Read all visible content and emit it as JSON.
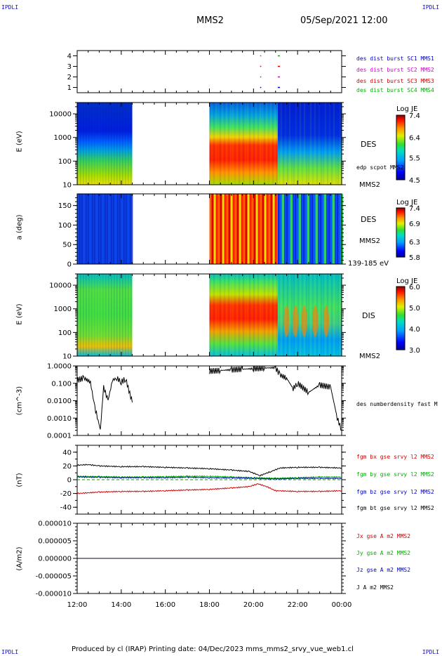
{
  "header": {
    "corner_tl": "IPDLI",
    "corner_tr": "IPDLI",
    "corner_bl": "IPDLI",
    "corner_br": "IPDLI",
    "spacecraft": "MMS2",
    "datetime": "05/Sep/2021 12:00"
  },
  "footer": {
    "text": "Produced by cl (IRAP)   Printing date: 04/Dec/2023   mms_mms2_srvy_vue_web1.cl"
  },
  "colors": {
    "blue": "#0000c8",
    "magenta": "#d000d0",
    "red": "#d00000",
    "green": "#00b000",
    "black": "#000000"
  },
  "chart_data": [
    {
      "type": "scatter",
      "panel": "spacecraft_availability",
      "ylabel": "",
      "yticks": [
        "1",
        "2",
        "3",
        "4"
      ],
      "ylim": [
        0.5,
        4.5
      ],
      "legend": [
        {
          "name": "des dist burst SC1 MMS1",
          "color": "#0000c8"
        },
        {
          "name": "des dist burst SC2 MMS2",
          "color": "#d000d0"
        },
        {
          "name": "des dist burst SC3 MMS3",
          "color": "#d00000"
        },
        {
          "name": "des dist burst SC4 MMS4",
          "color": "#00b000"
        }
      ],
      "marks": [
        {
          "sc": 1,
          "start_h": 20.3,
          "end_h": 20.35
        },
        {
          "sc": 2,
          "start_h": 20.3,
          "end_h": 20.35
        },
        {
          "sc": 3,
          "start_h": 20.3,
          "end_h": 20.35
        },
        {
          "sc": 4,
          "start_h": 20.3,
          "end_h": 20.35
        },
        {
          "sc": 1,
          "start_h": 21.1,
          "end_h": 21.2
        },
        {
          "sc": 2,
          "start_h": 21.1,
          "end_h": 21.2
        },
        {
          "sc": 3,
          "start_h": 21.1,
          "end_h": 21.2
        },
        {
          "sc": 4,
          "start_h": 21.1,
          "end_h": 21.2
        }
      ]
    },
    {
      "type": "heatmap",
      "panel": "des_energy",
      "ylabel": "E (eV)",
      "yscale": "log",
      "ylim": [
        10,
        30000
      ],
      "yticks": [
        "10",
        "100",
        "1000",
        "10000"
      ],
      "label": "DES",
      "secondary_label": "edp scpot MMS2",
      "sc_label": "MMS2",
      "colorbar": {
        "title": "Log JE",
        "ticks": [
          "4.5",
          "5.5",
          "6.4",
          "7.4"
        ],
        "range": [
          4.5,
          7.4
        ]
      },
      "data_gap_h": [
        14.5,
        18.0
      ]
    },
    {
      "type": "heatmap",
      "panel": "des_pitch",
      "ylabel": "a (deg)",
      "ylim": [
        0,
        180
      ],
      "yticks": [
        "0",
        "50",
        "100",
        "150"
      ],
      "label": "DES",
      "sc_label": "MMS2",
      "energy_range": "139-185 eV",
      "colorbar": {
        "title": "Log JE",
        "ticks": [
          "5.8",
          "6.3",
          "6.9",
          "7.4"
        ],
        "range": [
          5.8,
          7.4
        ]
      },
      "data_gap_h": [
        14.5,
        18.0
      ]
    },
    {
      "type": "heatmap",
      "panel": "dis_energy",
      "ylabel": "E (eV)",
      "yscale": "log",
      "ylim": [
        10,
        30000
      ],
      "yticks": [
        "10",
        "100",
        "1000",
        "10000"
      ],
      "label": "DIS",
      "sc_label": "MMS2",
      "colorbar": {
        "title": "Log JE",
        "ticks": [
          "3.0",
          "4.0",
          "5.0",
          "6.0"
        ],
        "range": [
          3.0,
          6.0
        ]
      },
      "data_gap_h": [
        14.5,
        18.0
      ]
    },
    {
      "type": "line",
      "panel": "density",
      "ylabel": "(cm^-3)",
      "yscale": "log",
      "ylim": [
        0.0001,
        1.0
      ],
      "yticks": [
        "0.0001",
        "0.0010",
        "0.0100",
        "0.100",
        "1.0000"
      ],
      "series": [
        {
          "name": "des numberdensity fast M",
          "color": "#000000",
          "x": [
            12.0,
            12.3,
            12.6,
            12.8,
            12.95,
            13.05,
            13.2,
            13.4,
            13.6,
            13.8,
            14.0,
            14.2,
            14.5,
            18.0,
            18.5,
            19.0,
            19.5,
            20.0,
            20.5,
            21.0,
            21.2,
            21.5,
            21.8,
            22.0,
            22.5,
            23.0,
            23.5,
            23.8,
            24.0
          ],
          "values": [
            0.15,
            0.2,
            0.12,
            0.004,
            0.0008,
            0.0002,
            0.06,
            0.01,
            0.15,
            0.2,
            0.12,
            0.18,
            0.008,
            0.5,
            0.55,
            0.6,
            0.65,
            0.7,
            0.75,
            0.8,
            0.3,
            0.2,
            0.05,
            0.1,
            0.03,
            0.08,
            0.06,
            0.001,
            0.0002
          ]
        }
      ]
    },
    {
      "type": "line",
      "panel": "magnetic_field",
      "ylabel": "(nT)",
      "ylim": [
        -50,
        50
      ],
      "yticks": [
        "-40",
        "-20",
        "0",
        "20",
        "40"
      ],
      "series": [
        {
          "name": "fgm bx gse srvy l2 MMS2",
          "color": "#d00000",
          "x": [
            12,
            13,
            14,
            15,
            16,
            17,
            18,
            19,
            19.8,
            20.2,
            20.6,
            21,
            22,
            23,
            24
          ],
          "values": [
            -20,
            -18,
            -17,
            -17,
            -16,
            -15,
            -14,
            -12,
            -10,
            -6,
            -10,
            -16,
            -17,
            -17,
            -16
          ]
        },
        {
          "name": "fgm by gse srvy l2 MMS2",
          "color": "#00b000",
          "x": [
            12,
            13,
            14,
            15,
            16,
            17,
            18,
            19,
            20,
            21,
            22,
            23,
            24
          ],
          "values": [
            5,
            4.5,
            4,
            4,
            4.5,
            5,
            5,
            4,
            3,
            2,
            3,
            4,
            4
          ]
        },
        {
          "name": "fgm bz gse srvy l2 MMS2",
          "color": "#0000c8",
          "x": [
            12,
            13,
            14,
            15,
            16,
            17,
            18,
            19,
            20,
            21,
            22,
            23,
            24
          ],
          "values": [
            4,
            3.5,
            3,
            3,
            3,
            3.5,
            3,
            2.5,
            2,
            1,
            2,
            2,
            2
          ]
        },
        {
          "name": "fgm bt gse srvy l2 MMS2",
          "color": "#000000",
          "x": [
            12,
            12.5,
            13,
            14,
            15,
            16,
            17,
            18,
            19,
            19.8,
            20.3,
            20.8,
            21.2,
            22,
            23,
            24
          ],
          "values": [
            21,
            22,
            20,
            19,
            19,
            18,
            17,
            16,
            14,
            12,
            6,
            12,
            17,
            18,
            18,
            17
          ]
        }
      ]
    },
    {
      "type": "line",
      "panel": "current_density",
      "ylabel": "(A/m2)",
      "ylim": [
        -1e-05,
        1e-05
      ],
      "yticks": [
        "-0.000010",
        "-0.000005",
        "0.000000",
        "0.000005",
        "0.000010"
      ],
      "series": [
        {
          "name": "Jx gse A m2 MMS2",
          "color": "#d00000",
          "x": [
            12,
            24
          ],
          "values": [
            0,
            0
          ]
        },
        {
          "name": "Jy gse A m2 MMS2",
          "color": "#00b000",
          "x": [
            12,
            24
          ],
          "values": [
            0,
            0
          ]
        },
        {
          "name": "Jz gse A m2 MMS2",
          "color": "#0000c8",
          "x": [
            12,
            24
          ],
          "values": [
            0,
            0
          ]
        },
        {
          "name": "J A m2 MMS2",
          "color": "#000000",
          "x": [
            12,
            24
          ],
          "values": [
            0,
            0
          ]
        }
      ]
    }
  ],
  "time_axis": {
    "ticks": [
      "12:00",
      "14:00",
      "16:00",
      "18:00",
      "20:00",
      "22:00",
      "00:00"
    ]
  }
}
